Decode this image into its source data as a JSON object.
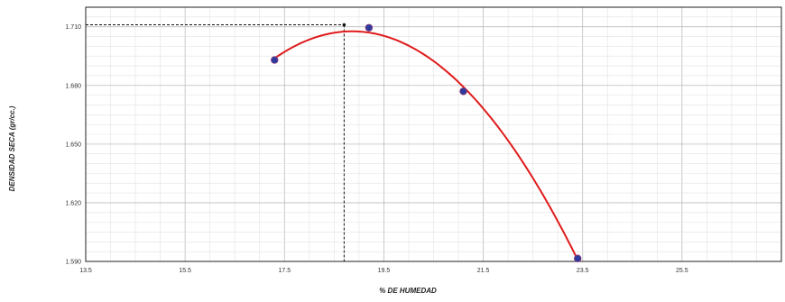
{
  "chart_data": {
    "type": "scatter",
    "title": "",
    "xlabel": "% DE HUMEDAD",
    "ylabel": "DENSIDAD SECA (gr/cc.)",
    "xlim": [
      13.5,
      27.5
    ],
    "ylim": [
      1.59,
      1.72
    ],
    "x_ticks": [
      "13.5",
      "15.5",
      "17.5",
      "19.5",
      "21.5",
      "23.5",
      "25.5"
    ],
    "y_ticks": [
      "1.710",
      "1.680",
      "1.650",
      "1.620",
      "1.590"
    ],
    "grid": true,
    "series": [
      {
        "points": [
          {
            "x": 17.3,
            "y": 1.693
          },
          {
            "x": 19.2,
            "y": 1.7095
          },
          {
            "x": 21.1,
            "y": 1.677
          },
          {
            "x": 23.4,
            "y": 1.5915
          }
        ],
        "marker_color": "#2e3a9e",
        "fit_curve_color": "#e01b1b"
      }
    ],
    "optimum": {
      "x": 18.7,
      "y": 1.711
    },
    "optimum_line_color": "#111111"
  }
}
